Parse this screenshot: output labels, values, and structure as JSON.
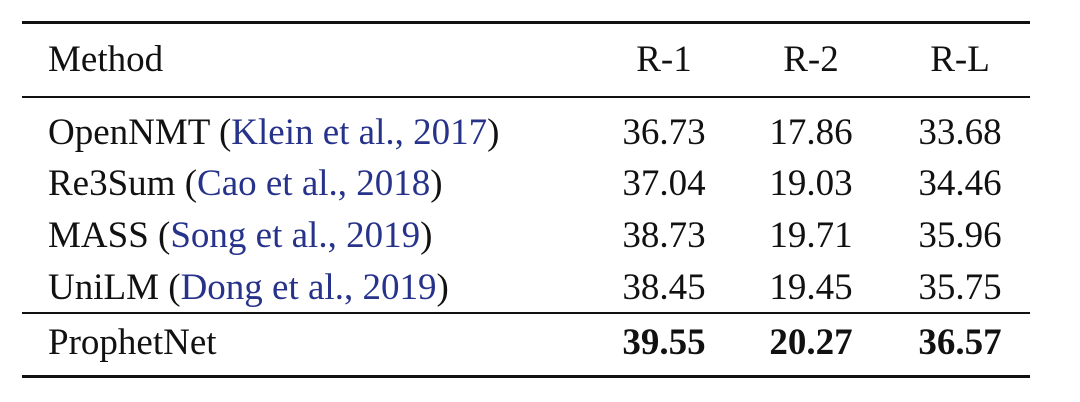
{
  "table": {
    "header": [
      "Method",
      "R-1",
      "R-2",
      "R-L"
    ],
    "rows": [
      {
        "method": [
          {
            "text": "OpenNMT ("
          },
          {
            "text": "Klein et al., 2017",
            "cite": true
          },
          {
            "text": ")"
          }
        ],
        "scores": [
          "36.73",
          "17.86",
          "33.68"
        ]
      },
      {
        "method": [
          {
            "text": "Re3Sum ("
          },
          {
            "text": "Cao et al., 2018",
            "cite": true
          },
          {
            "text": ")"
          }
        ],
        "scores": [
          "37.04",
          "19.03",
          "34.46"
        ]
      },
      {
        "method": [
          {
            "text": "MASS ("
          },
          {
            "text": "Song et al., 2019",
            "cite": true
          },
          {
            "text": ")"
          }
        ],
        "scores": [
          "38.73",
          "19.71",
          "35.96"
        ]
      },
      {
        "method": [
          {
            "text": "UniLM ("
          },
          {
            "text": "Dong et al., 2019",
            "cite": true
          },
          {
            "text": ")"
          }
        ],
        "scores": [
          "38.45",
          "19.45",
          "35.75"
        ]
      },
      {
        "method": [
          {
            "text": "ProphetNet"
          }
        ],
        "scores": [
          "39.55",
          "20.27",
          "36.57"
        ],
        "bold": true
      }
    ]
  }
}
